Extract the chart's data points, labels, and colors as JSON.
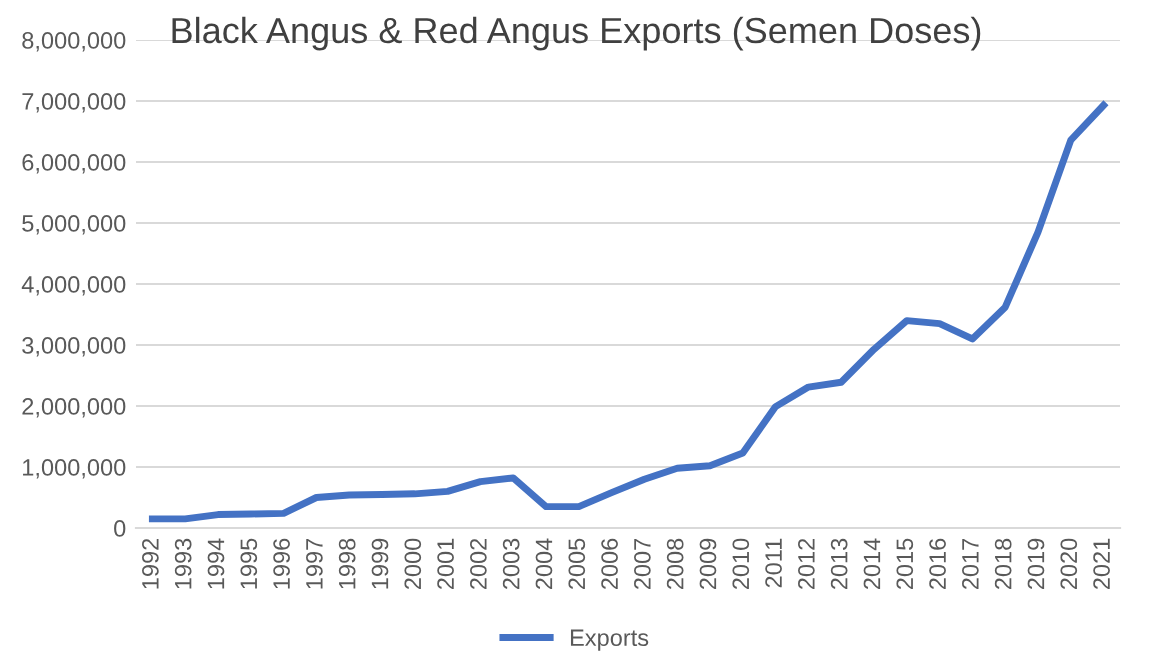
{
  "chart_data": {
    "type": "line",
    "title": "Black Angus & Red Angus Exports (Semen Doses)",
    "categories": [
      "1992",
      "1993",
      "1994",
      "1995",
      "1996",
      "1997",
      "1998",
      "1999",
      "2000",
      "2001",
      "2002",
      "2003",
      "2004",
      "2005",
      "2006",
      "2007",
      "2008",
      "2009",
      "2010",
      "2011",
      "2012",
      "2013",
      "2014",
      "2015",
      "2016",
      "2017",
      "2018",
      "2019",
      "2020",
      "2021"
    ],
    "series": [
      {
        "name": "Exports",
        "color": "#4472c4",
        "values": [
          150000,
          150000,
          220000,
          230000,
          240000,
          500000,
          540000,
          550000,
          560000,
          600000,
          760000,
          820000,
          350000,
          350000,
          580000,
          800000,
          980000,
          1020000,
          1230000,
          1990000,
          2310000,
          2390000,
          2930000,
          3400000,
          3350000,
          3100000,
          3620000,
          4850000,
          6360000,
          6930000
        ]
      }
    ],
    "ylim": [
      0,
      8000000
    ],
    "yticks": [
      0,
      {
        "value": 1000000,
        "label": "1,000,000"
      },
      {
        "value": 2000000,
        "label": "2,000,000"
      },
      {
        "value": 3000000,
        "label": "3,000,000"
      },
      {
        "value": 4000000,
        "label": "4,000,000"
      },
      {
        "value": 5000000,
        "label": "5,000,000"
      },
      {
        "value": 6000000,
        "label": "6,000,000"
      },
      {
        "value": 7000000,
        "label": "7,000,000"
      },
      {
        "value": 8000000,
        "label": "8,000,000"
      }
    ],
    "grid": "y",
    "legend": "bottom",
    "marker": "none",
    "line_style": "solid"
  }
}
